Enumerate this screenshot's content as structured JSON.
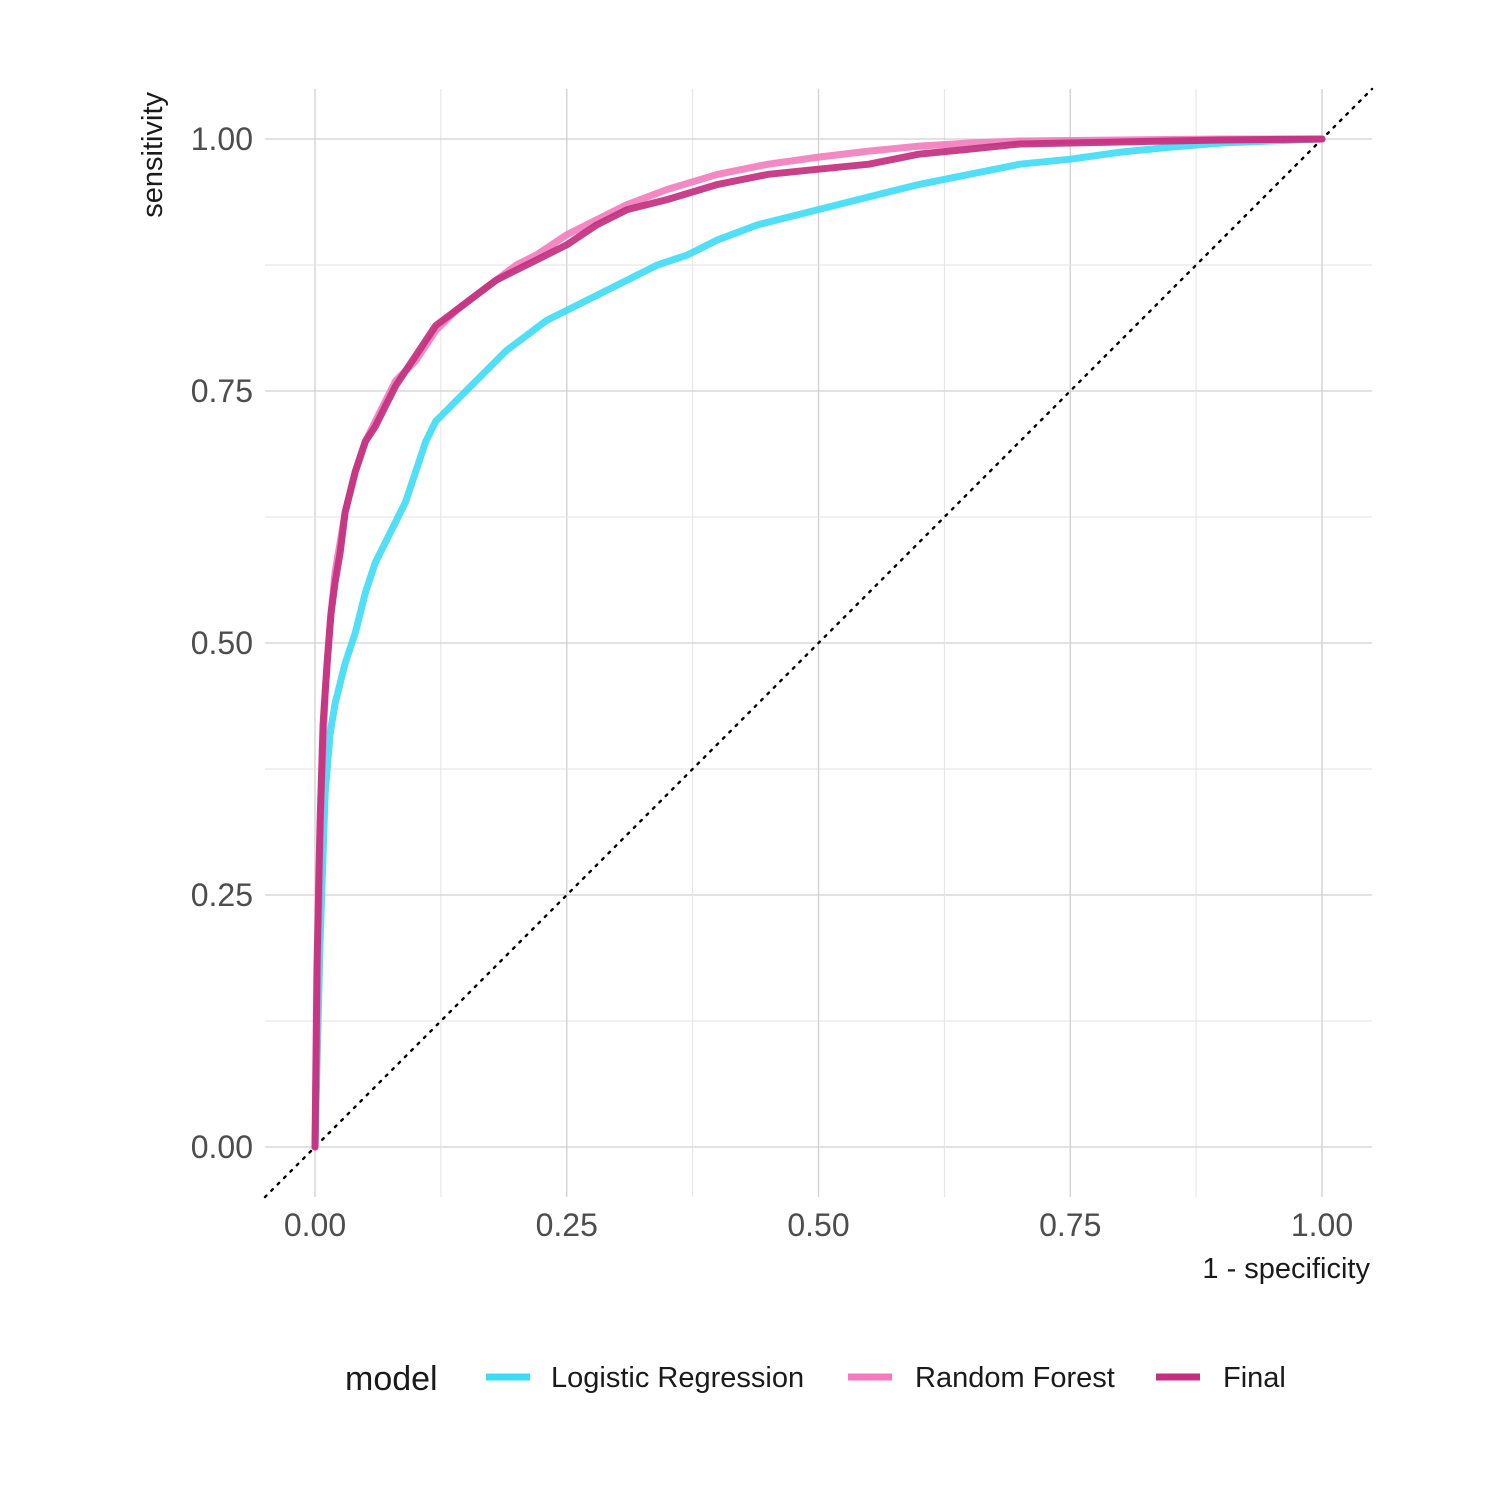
{
  "chart_data": {
    "type": "line",
    "title": "",
    "xlabel": "1 - specificity",
    "ylabel": "sensitivity",
    "xlim": [
      0,
      1
    ],
    "ylim": [
      0,
      1
    ],
    "grid": true,
    "legend_placement": "bottom",
    "legend_title": "model",
    "x_tick_labels": [
      "0.00",
      "0.25",
      "0.50",
      "0.75",
      "1.00"
    ],
    "y_tick_labels": [
      "0.00",
      "0.25",
      "0.50",
      "0.75",
      "1.00"
    ],
    "reference_line": {
      "style": "dotted",
      "x": [
        0,
        1
      ],
      "y": [
        0,
        1
      ]
    },
    "series": [
      {
        "name": "Logistic Regression",
        "color": "#3ddcf5",
        "x": [
          0,
          0.005,
          0.01,
          0.015,
          0.02,
          0.03,
          0.04,
          0.05,
          0.06,
          0.07,
          0.08,
          0.09,
          0.1,
          0.11,
          0.12,
          0.13,
          0.15,
          0.17,
          0.19,
          0.21,
          0.23,
          0.25,
          0.28,
          0.31,
          0.34,
          0.37,
          0.4,
          0.44,
          0.48,
          0.52,
          0.56,
          0.6,
          0.65,
          0.7,
          0.75,
          0.8,
          0.85,
          0.9,
          0.95,
          1.0
        ],
        "y": [
          0,
          0.2,
          0.35,
          0.41,
          0.44,
          0.48,
          0.51,
          0.55,
          0.58,
          0.6,
          0.62,
          0.64,
          0.67,
          0.7,
          0.72,
          0.73,
          0.75,
          0.77,
          0.79,
          0.805,
          0.82,
          0.83,
          0.845,
          0.86,
          0.875,
          0.885,
          0.9,
          0.915,
          0.925,
          0.935,
          0.945,
          0.955,
          0.965,
          0.975,
          0.98,
          0.987,
          0.992,
          0.996,
          0.998,
          1.0
        ]
      },
      {
        "name": "Random Forest",
        "color": "#f27bbd",
        "x": [
          0,
          0.003,
          0.006,
          0.01,
          0.015,
          0.02,
          0.03,
          0.04,
          0.05,
          0.06,
          0.07,
          0.08,
          0.1,
          0.12,
          0.14,
          0.16,
          0.18,
          0.2,
          0.22,
          0.25,
          0.28,
          0.31,
          0.35,
          0.4,
          0.45,
          0.5,
          0.55,
          0.6,
          0.65,
          0.7,
          0.8,
          0.9,
          1.0
        ],
        "y": [
          0,
          0.2,
          0.34,
          0.45,
          0.52,
          0.57,
          0.63,
          0.67,
          0.7,
          0.72,
          0.74,
          0.76,
          0.78,
          0.81,
          0.83,
          0.845,
          0.86,
          0.875,
          0.885,
          0.905,
          0.92,
          0.935,
          0.95,
          0.965,
          0.975,
          0.982,
          0.988,
          0.993,
          0.996,
          0.998,
          0.999,
          1.0,
          1.0
        ]
      },
      {
        "name": "Final",
        "color": "#c2307f",
        "x": [
          0,
          0.002,
          0.005,
          0.008,
          0.012,
          0.016,
          0.02,
          0.025,
          0.03,
          0.04,
          0.05,
          0.06,
          0.07,
          0.08,
          0.09,
          0.1,
          0.12,
          0.14,
          0.16,
          0.18,
          0.2,
          0.22,
          0.25,
          0.28,
          0.31,
          0.35,
          0.4,
          0.45,
          0.5,
          0.55,
          0.6,
          0.65,
          0.7,
          0.8,
          0.9,
          1.0
        ],
        "y": [
          0,
          0.18,
          0.32,
          0.42,
          0.48,
          0.53,
          0.56,
          0.59,
          0.63,
          0.67,
          0.7,
          0.715,
          0.735,
          0.755,
          0.77,
          0.785,
          0.815,
          0.83,
          0.845,
          0.86,
          0.87,
          0.88,
          0.895,
          0.915,
          0.93,
          0.94,
          0.955,
          0.965,
          0.97,
          0.975,
          0.985,
          0.99,
          0.995,
          0.997,
          0.999,
          1.0
        ]
      }
    ]
  }
}
